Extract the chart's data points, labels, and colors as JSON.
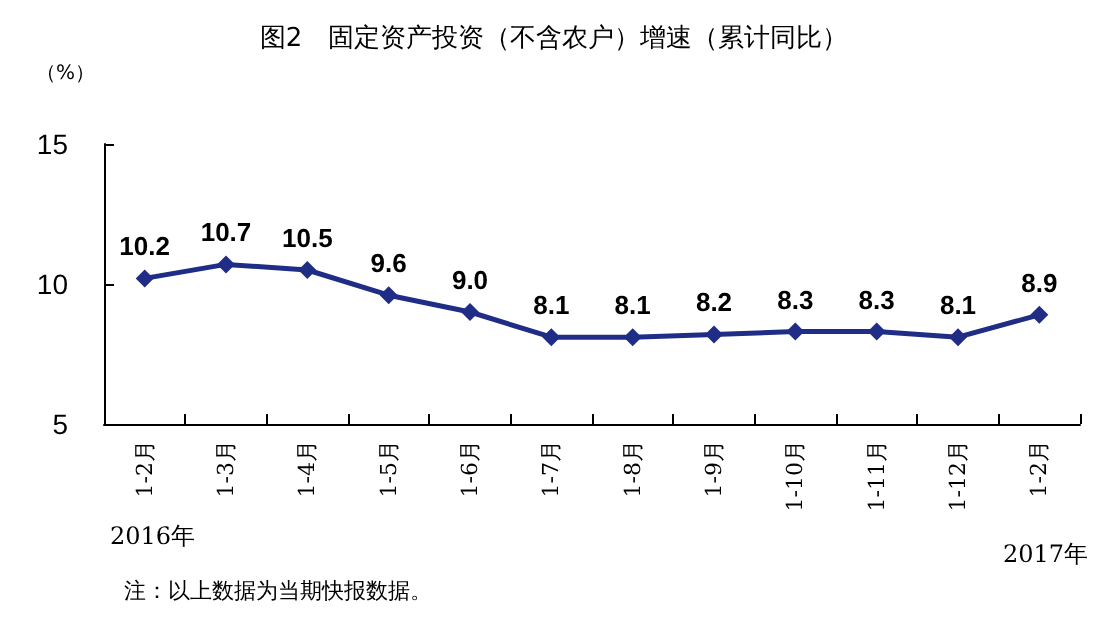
{
  "chart_data": {
    "type": "line",
    "title": "图2　固定资产投资（不含农户）增速（累计同比）",
    "ylabel": "（%）",
    "categories": [
      "1-2月",
      "1-3月",
      "1-4月",
      "1-5月",
      "1-6月",
      "1-7月",
      "1-8月",
      "1-9月",
      "1-10月",
      "1-11月",
      "1-12月",
      "1-2月"
    ],
    "series": [
      {
        "color": "#1f2d86",
        "values": [
          10.2,
          10.7,
          10.5,
          9.6,
          9.0,
          8.1,
          8.1,
          8.2,
          8.3,
          8.3,
          8.1,
          8.9
        ],
        "value_labels": [
          "10.2",
          "10.7",
          "10.5",
          "9.6",
          "9.0",
          "8.1",
          "8.1",
          "8.2",
          "8.3",
          "8.3",
          "8.1",
          "8.9"
        ]
      }
    ],
    "ylim": [
      5,
      15
    ],
    "yticks": [
      5,
      10,
      15
    ],
    "grid": false,
    "marker": "diamond",
    "line_style": "solid",
    "annotations": [
      "2016年",
      "2017年",
      "注：以上数据为当期快报数据。"
    ]
  }
}
